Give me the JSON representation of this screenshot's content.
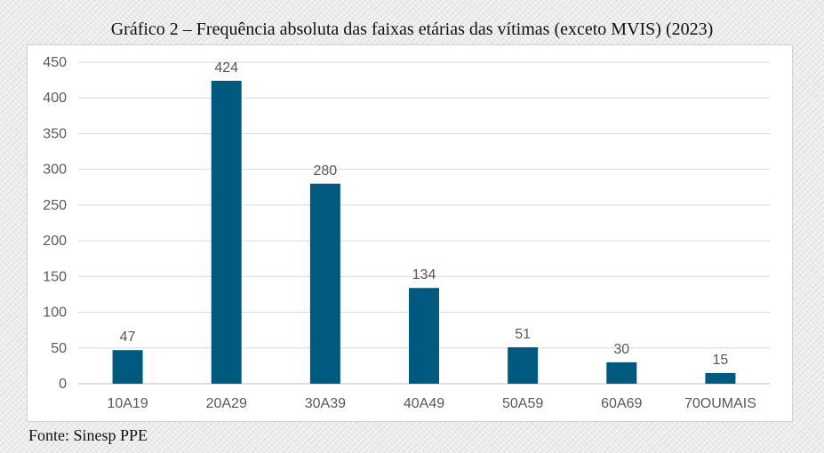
{
  "chart_data": {
    "type": "bar",
    "title": "Gráfico 2 – Frequência absoluta das faixas etárias das vítimas (exceto MVIS) (2023)",
    "categories": [
      "10A19",
      "20A29",
      "30A39",
      "40A49",
      "50A59",
      "60A69",
      "70OUMAIS"
    ],
    "values": [
      47,
      424,
      280,
      134,
      51,
      30,
      15
    ],
    "data_labels": [
      "47",
      "424",
      "280",
      "134",
      "51",
      "30",
      "15"
    ],
    "yticks": [
      0,
      50,
      100,
      150,
      200,
      250,
      300,
      350,
      400,
      450
    ],
    "ylim": [
      0,
      450
    ],
    "xlabel": "",
    "ylabel": "",
    "grid": true,
    "legend": "none",
    "bar_color": "#005A7F",
    "grid_color": "#d9d9d9",
    "text_color": "#595959"
  },
  "source": "Fonte: Sinesp PPE"
}
